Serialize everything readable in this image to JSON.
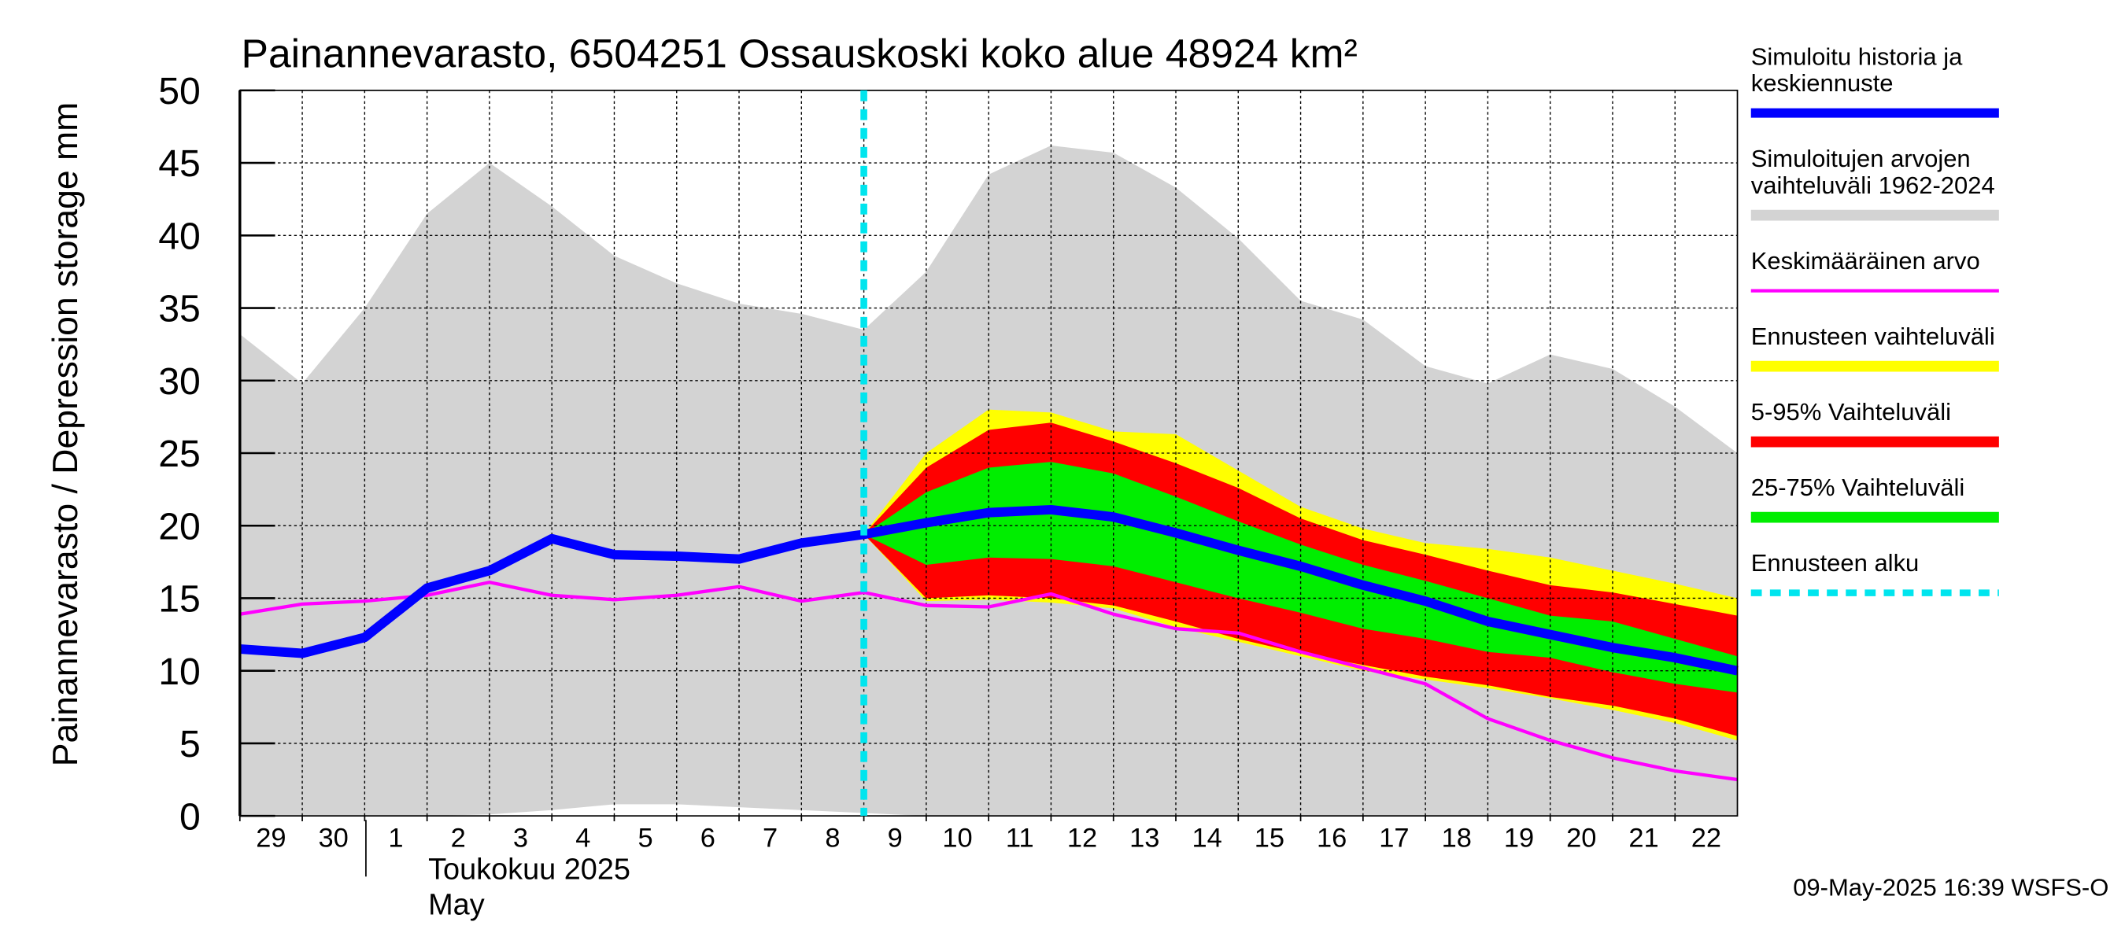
{
  "chart_data": {
    "type": "line",
    "title": "Painannevarasto, 6504251 Ossauskoski koko alue 48924 km²",
    "y_label": "Painannevarasto / Depression storage    mm",
    "month_label": "Toukokuu  2025",
    "month_label_en": "May",
    "footer": "09-May-2025 16:39 WSFS-O",
    "xlim": [
      0,
      24
    ],
    "xticks": [
      {
        "value": 0,
        "label": "29"
      },
      {
        "value": 1,
        "label": "30"
      },
      {
        "value": 2,
        "label": "1"
      },
      {
        "value": 3,
        "label": "2"
      },
      {
        "value": 4,
        "label": "3"
      },
      {
        "value": 5,
        "label": "4"
      },
      {
        "value": 6,
        "label": "5"
      },
      {
        "value": 7,
        "label": "6"
      },
      {
        "value": 8,
        "label": "7"
      },
      {
        "value": 9,
        "label": "8"
      },
      {
        "value": 10,
        "label": "9"
      },
      {
        "value": 11,
        "label": "10"
      },
      {
        "value": 12,
        "label": "11"
      },
      {
        "value": 13,
        "label": "12"
      },
      {
        "value": 14,
        "label": "13"
      },
      {
        "value": 15,
        "label": "14"
      },
      {
        "value": 16,
        "label": "15"
      },
      {
        "value": 17,
        "label": "16"
      },
      {
        "value": 18,
        "label": "17"
      },
      {
        "value": 19,
        "label": "18"
      },
      {
        "value": 20,
        "label": "19"
      },
      {
        "value": 21,
        "label": "20"
      },
      {
        "value": 22,
        "label": "21"
      },
      {
        "value": 23,
        "label": "22"
      }
    ],
    "ylim": [
      0,
      50
    ],
    "yticks": [
      0,
      5,
      10,
      15,
      20,
      25,
      30,
      35,
      40,
      45,
      50
    ],
    "grid": true,
    "x": [
      0,
      1,
      2,
      3,
      4,
      5,
      6,
      7,
      8,
      9,
      10,
      11,
      12,
      13,
      14,
      15,
      16,
      17,
      18,
      19,
      20,
      21,
      22,
      23,
      24
    ],
    "series": [
      {
        "name": "Simuloitujen arvojen\nvaihteluväli 1962-2024",
        "color": "#d3d3d3",
        "values": [
          33.2,
          29.8,
          35,
          41.5,
          45,
          42,
          38.6,
          36.7,
          35.3,
          34.6,
          33.5,
          37.5,
          44.2,
          46.2,
          45.7,
          43.3,
          39.8,
          35.5,
          34.2,
          31,
          29.8,
          31.8,
          30.8,
          28.2,
          25
        ],
        "lower": [
          0,
          0,
          0,
          0,
          0.1,
          0.4,
          0.8,
          0.8,
          0.6,
          0.4,
          0.2,
          0,
          0,
          0,
          0,
          0,
          0,
          0,
          0,
          0,
          0,
          0,
          0,
          0,
          0
        ]
      },
      {
        "name": "Ennusteen vaihteluväli",
        "color": "#ffff00",
        "values": [
          null,
          null,
          null,
          null,
          null,
          null,
          null,
          null,
          null,
          null,
          19.4,
          25,
          28,
          27.8,
          26.5,
          26.3,
          23.8,
          21.3,
          19.8,
          18.8,
          18.4,
          17.8,
          16.9,
          16,
          15
        ],
        "lower": [
          null,
          null,
          null,
          null,
          null,
          null,
          null,
          null,
          null,
          null,
          19.4,
          14.8,
          14.9,
          14.7,
          14.3,
          13,
          12,
          11,
          10,
          9.4,
          8.8,
          8.1,
          7.3,
          6.4,
          5.2
        ]
      },
      {
        "name": "5-95% Vaihteluväli",
        "color": "#ff0000",
        "values": [
          null,
          null,
          null,
          null,
          null,
          null,
          null,
          null,
          null,
          null,
          19.4,
          24,
          26.6,
          27.1,
          25.8,
          24.3,
          22.6,
          20.5,
          19,
          18,
          16.9,
          15.9,
          15.4,
          14.6,
          13.8
        ],
        "lower": [
          null,
          null,
          null,
          null,
          null,
          null,
          null,
          null,
          null,
          null,
          19.4,
          15,
          15.2,
          15,
          14.5,
          13.4,
          12.2,
          11.2,
          10.4,
          9.6,
          9,
          8.2,
          7.6,
          6.7,
          5.5
        ]
      },
      {
        "name": "25-75% Vaihteluväli",
        "color": "#00ee00",
        "values": [
          null,
          null,
          null,
          null,
          null,
          null,
          null,
          null,
          null,
          null,
          19.4,
          22.3,
          24,
          24.4,
          23.6,
          22,
          20.3,
          18.7,
          17.3,
          16.2,
          15,
          13.8,
          13.4,
          12.2,
          11
        ],
        "lower": [
          null,
          null,
          null,
          null,
          null,
          null,
          null,
          null,
          null,
          null,
          19.4,
          17.3,
          17.8,
          17.7,
          17.2,
          16.1,
          15,
          14,
          12.9,
          12.2,
          11.3,
          10.9,
          9.9,
          9.1,
          8.5
        ]
      },
      {
        "name": "Keskimääräinen arvo",
        "color": "#ff00ff",
        "values": [
          13.9,
          14.6,
          14.8,
          15.2,
          16.1,
          15.2,
          14.9,
          15.2,
          15.8,
          14.8,
          15.4,
          14.5,
          14.4,
          15.3,
          13.9,
          12.9,
          12.6,
          11.3,
          10.2,
          9.1,
          6.7,
          5.2,
          4,
          3.1,
          2.5
        ]
      },
      {
        "name": "Simuloitu historia ja\nkeskiennuste",
        "color": "#0000ff",
        "values": [
          11.5,
          11.2,
          12.3,
          15.7,
          16.9,
          19.1,
          18,
          17.9,
          17.7,
          18.8,
          19.4,
          20.2,
          20.9,
          21.1,
          20.6,
          19.5,
          18.3,
          17.2,
          15.9,
          14.8,
          13.4,
          12.5,
          11.6,
          10.9,
          10
        ]
      }
    ],
    "legend_order": [
      5,
      0,
      4,
      1,
      2,
      3
    ],
    "forecast_start": {
      "name": "Ennusteen alku",
      "x": 10,
      "color": "#00e5ee"
    }
  }
}
